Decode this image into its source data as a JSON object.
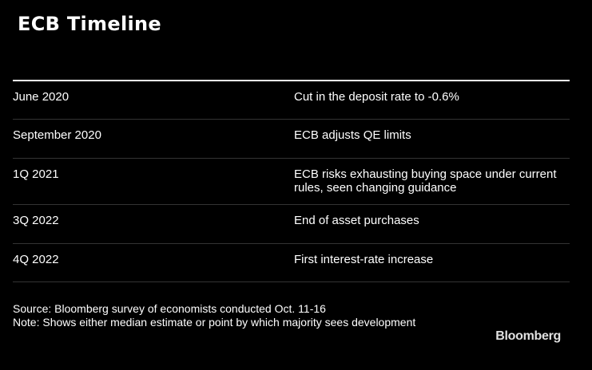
{
  "title": "ECB Timeline",
  "rows": [
    {
      "date": "June 2020",
      "event": "Cut in the deposit rate to -0.6%"
    },
    {
      "date": "September 2020",
      "event": "ECB adjusts QE limits"
    },
    {
      "date": "1Q 2021",
      "event": "ECB risks exhausting buying space under current rules, seen changing guidance"
    },
    {
      "date": "3Q 2022",
      "event": "End of asset purchases"
    },
    {
      "date": "4Q 2022",
      "event": "First interest-rate increase"
    }
  ],
  "footer": {
    "source": "Source: Bloomberg survey of economists conducted Oct. 11-16",
    "note": "Note: Shows either median estimate or point by which majority sees development"
  },
  "logo": "Bloomberg"
}
